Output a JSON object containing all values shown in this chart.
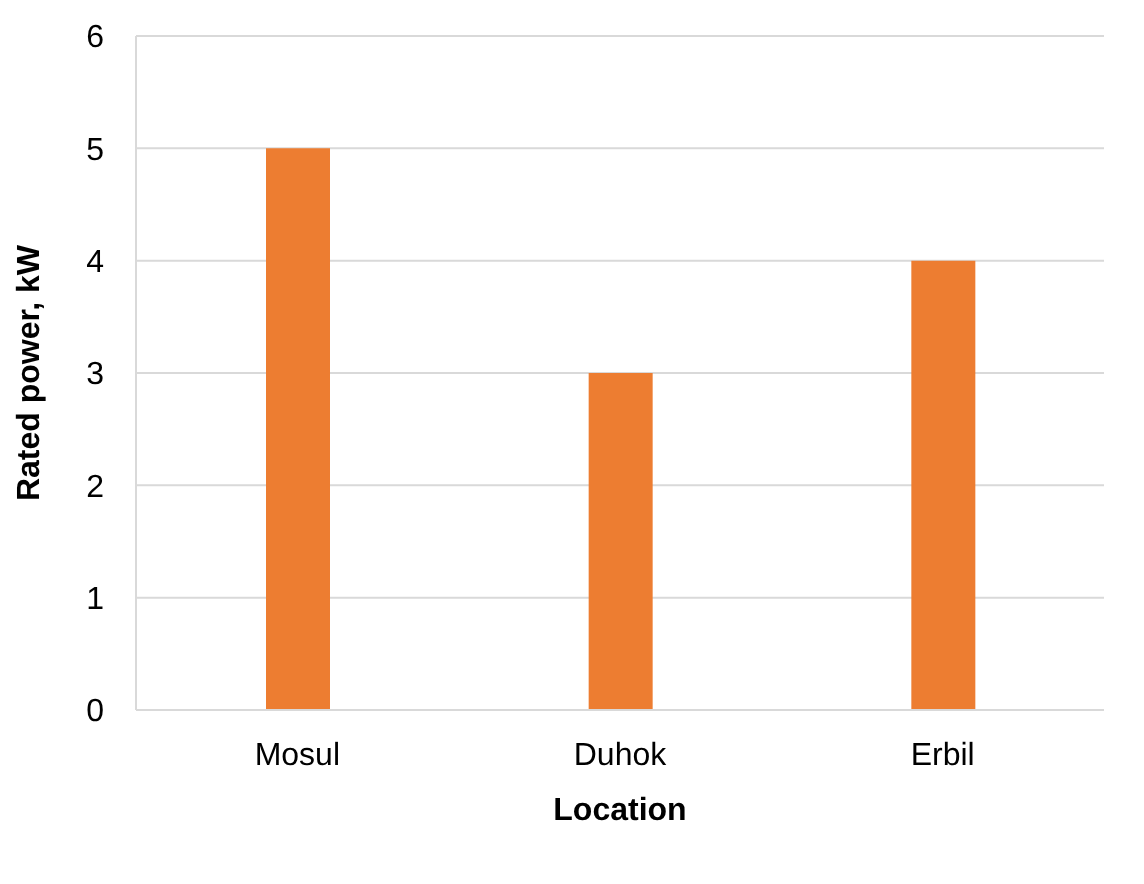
{
  "chart_data": {
    "type": "bar",
    "xlabel": "Location",
    "ylabel": "Rated power, kW",
    "categories": [
      "Mosul",
      "Duhok",
      "Erbil"
    ],
    "values": [
      5,
      3,
      4
    ],
    "color": "#ed7d31",
    "ylim": [
      0,
      6
    ],
    "yticks": [
      0,
      1,
      2,
      3,
      4,
      5,
      6
    ],
    "grid": "y"
  }
}
